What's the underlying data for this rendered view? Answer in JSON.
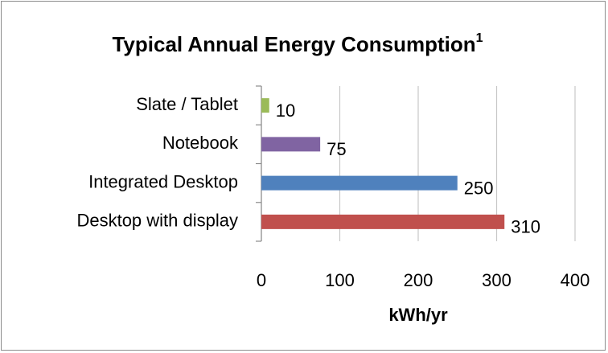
{
  "chart_data": {
    "type": "bar",
    "orientation": "horizontal",
    "title": "Typical Annual Energy Consumption",
    "title_superscript": "1",
    "x_label": "kWh/yr",
    "categories": [
      "Slate / Tablet",
      "Notebook",
      "Integrated Desktop",
      "Desktop with display"
    ],
    "values": [
      10,
      75,
      250,
      310
    ],
    "colors": [
      "#9bbb59",
      "#8064a2",
      "#4f81bd",
      "#c0504d"
    ],
    "xlim": [
      0,
      400
    ],
    "xticks": [
      0,
      100,
      200,
      300,
      400
    ],
    "grid": true
  }
}
